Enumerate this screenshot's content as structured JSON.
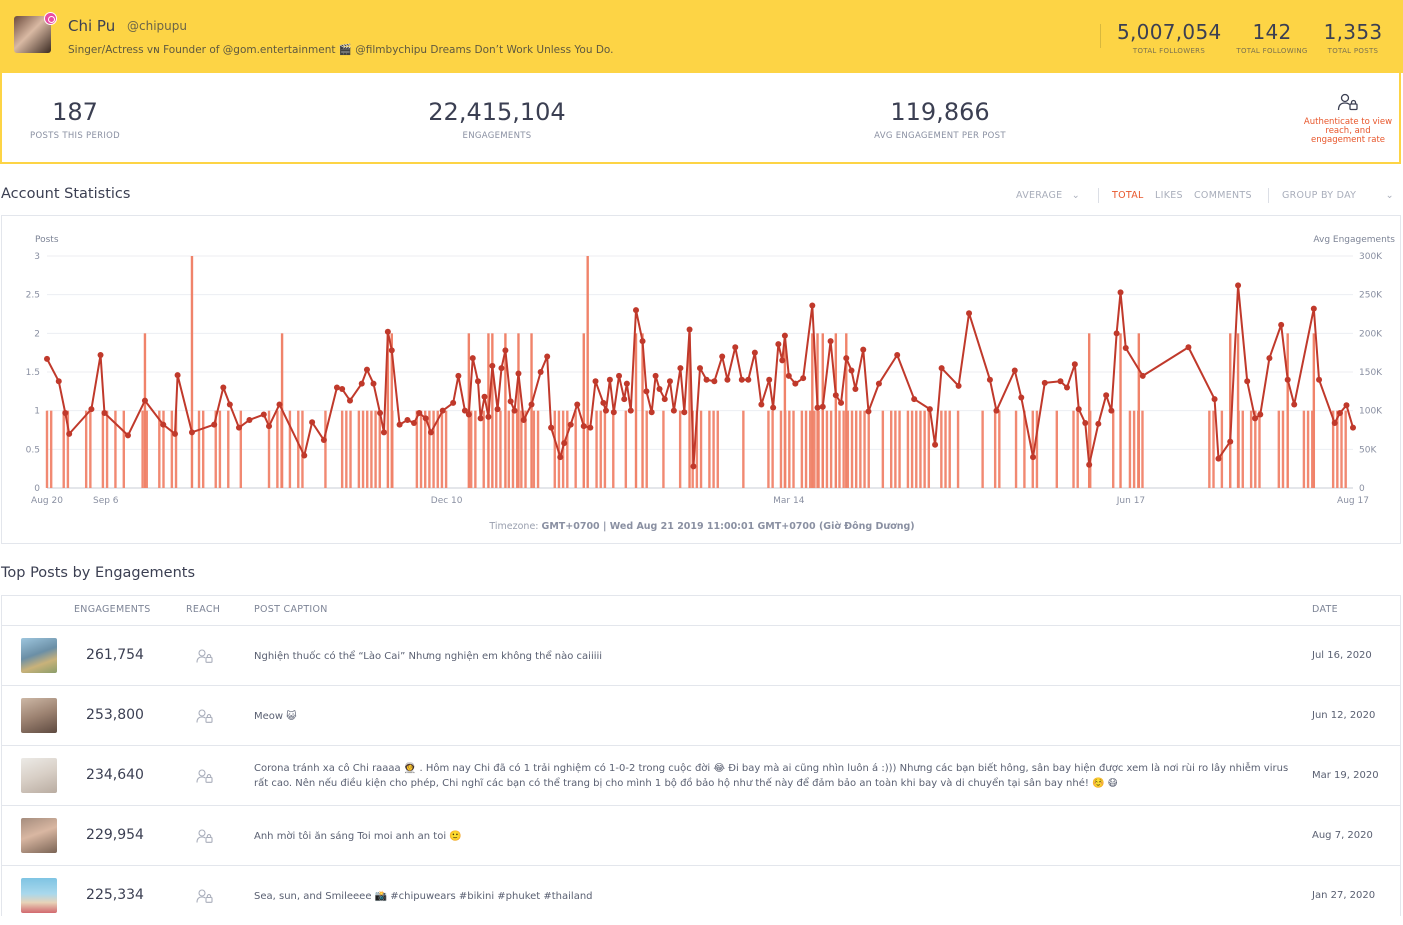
{
  "profile": {
    "name": "Chi Pu",
    "handle": "@chipupu",
    "bio": "Singer/Actress ᴠɴ Founder of @gom.entertainment 🎬 @filmbychipu Dreams Don’t Work Unless You Do.",
    "stats": [
      {
        "value": "5,007,054",
        "label": "TOTAL FOLLOWERS"
      },
      {
        "value": "142",
        "label": "TOTAL FOLLOWING"
      },
      {
        "value": "1,353",
        "label": "TOTAL POSTS"
      }
    ]
  },
  "summary": {
    "posts": {
      "value": "187",
      "label": "POSTS THIS PERIOD"
    },
    "engagements": {
      "value": "22,415,104",
      "label": "ENGAGEMENTS"
    },
    "avg": {
      "value": "119,866",
      "label": "AVG ENGAGEMENT PER POST"
    },
    "auth_text": "Authenticate to view reach, and engagement rate"
  },
  "stats_section": {
    "title": "Account Statistics",
    "average": "AVERAGE",
    "total": "TOTAL",
    "likes": "LIKES",
    "comments": "COMMENTS",
    "group": "GROUP BY DAY",
    "timezone_label": "Timezone:",
    "timezone_value": "GMT+0700 | Wed Aug 21 2019 11:00:01 GMT+0700 (Giờ Đông Dương)"
  },
  "chart_data": {
    "type": "bar+line",
    "left_axis_label": "Posts",
    "right_axis_label": "Avg Engagements",
    "left_ticks": [
      "0",
      "0.5",
      "1",
      "1.5",
      "2",
      "2.5",
      "3"
    ],
    "right_ticks": [
      "0",
      "50K",
      "100K",
      "150K",
      "200K",
      "250K",
      "300K"
    ],
    "ylim_left": [
      0,
      3
    ],
    "ylim_right": [
      0,
      300000
    ],
    "x_ticks": [
      {
        "label": "Aug 20",
        "t": 0
      },
      {
        "label": "Sep 6",
        "t": 0.045
      },
      {
        "label": "Dec 10",
        "t": 0.306
      },
      {
        "label": "Mar 14",
        "t": 0.568
      },
      {
        "label": "Jun 17",
        "t": 0.83
      },
      {
        "label": "Aug 17",
        "t": 1.0
      }
    ],
    "series_line": [
      [
        0.0,
        167000
      ],
      [
        0.009,
        138000
      ],
      [
        0.014,
        97000
      ],
      [
        0.017,
        70000
      ],
      [
        0.034,
        102000
      ],
      [
        0.041,
        172000
      ],
      [
        0.044,
        97000
      ],
      [
        0.062,
        68000
      ],
      [
        0.075,
        113000
      ],
      [
        0.089,
        82000
      ],
      [
        0.098,
        70000
      ],
      [
        0.1,
        146000
      ],
      [
        0.111,
        72000
      ],
      [
        0.128,
        82000
      ],
      [
        0.135,
        130000
      ],
      [
        0.14,
        108000
      ],
      [
        0.147,
        78000
      ],
      [
        0.155,
        88000
      ],
      [
        0.166,
        95000
      ],
      [
        0.17,
        80000
      ],
      [
        0.178,
        108000
      ],
      [
        0.197,
        42000
      ],
      [
        0.203,
        85000
      ],
      [
        0.212,
        62000
      ],
      [
        0.222,
        130000
      ],
      [
        0.226,
        128000
      ],
      [
        0.232,
        113000
      ],
      [
        0.241,
        135000
      ],
      [
        0.245,
        153000
      ],
      [
        0.25,
        135000
      ],
      [
        0.255,
        97000
      ],
      [
        0.258,
        72000
      ],
      [
        0.261,
        202000
      ],
      [
        0.264,
        178000
      ],
      [
        0.27,
        82000
      ],
      [
        0.276,
        88000
      ],
      [
        0.281,
        84000
      ],
      [
        0.285,
        97000
      ],
      [
        0.29,
        90000
      ],
      [
        0.294,
        72000
      ],
      [
        0.303,
        100000
      ],
      [
        0.311,
        110000
      ],
      [
        0.315,
        145000
      ],
      [
        0.32,
        100000
      ],
      [
        0.323,
        95000
      ],
      [
        0.326,
        168000
      ],
      [
        0.33,
        138000
      ],
      [
        0.332,
        90000
      ],
      [
        0.335,
        118000
      ],
      [
        0.338,
        92000
      ],
      [
        0.341,
        158000
      ],
      [
        0.345,
        102000
      ],
      [
        0.348,
        155000
      ],
      [
        0.351,
        178000
      ],
      [
        0.355,
        112000
      ],
      [
        0.358,
        100000
      ],
      [
        0.361,
        148000
      ],
      [
        0.365,
        88000
      ],
      [
        0.371,
        108000
      ],
      [
        0.378,
        150000
      ],
      [
        0.383,
        170000
      ],
      [
        0.386,
        78000
      ],
      [
        0.393,
        40000
      ],
      [
        0.396,
        58000
      ],
      [
        0.401,
        82000
      ],
      [
        0.406,
        108000
      ],
      [
        0.411,
        80000
      ],
      [
        0.416,
        78000
      ],
      [
        0.42,
        138000
      ],
      [
        0.426,
        110000
      ],
      [
        0.428,
        100000
      ],
      [
        0.431,
        140000
      ],
      [
        0.434,
        98000
      ],
      [
        0.438,
        145000
      ],
      [
        0.442,
        115000
      ],
      [
        0.444,
        135000
      ],
      [
        0.447,
        100000
      ],
      [
        0.451,
        230000
      ],
      [
        0.456,
        190000
      ],
      [
        0.459,
        125000
      ],
      [
        0.463,
        98000
      ],
      [
        0.466,
        145000
      ],
      [
        0.469,
        128000
      ],
      [
        0.473,
        115000
      ],
      [
        0.477,
        138000
      ],
      [
        0.48,
        100000
      ],
      [
        0.485,
        155000
      ],
      [
        0.488,
        98000
      ],
      [
        0.492,
        205000
      ],
      [
        0.495,
        28000
      ],
      [
        0.5,
        155000
      ],
      [
        0.505,
        140000
      ],
      [
        0.511,
        138000
      ],
      [
        0.517,
        170000
      ],
      [
        0.521,
        140000
      ],
      [
        0.527,
        182000
      ],
      [
        0.532,
        140000
      ],
      [
        0.537,
        140000
      ],
      [
        0.542,
        175000
      ],
      [
        0.547,
        108000
      ],
      [
        0.553,
        140000
      ],
      [
        0.556,
        104000
      ],
      [
        0.56,
        186000
      ],
      [
        0.563,
        165000
      ],
      [
        0.565,
        197000
      ],
      [
        0.568,
        145000
      ],
      [
        0.573,
        135000
      ],
      [
        0.579,
        142000
      ],
      [
        0.586,
        236000
      ],
      [
        0.59,
        104000
      ],
      [
        0.594,
        105000
      ],
      [
        0.6,
        190000
      ],
      [
        0.604,
        120000
      ],
      [
        0.608,
        110000
      ],
      [
        0.612,
        168000
      ],
      [
        0.616,
        152000
      ],
      [
        0.619,
        128000
      ],
      [
        0.625,
        179000
      ],
      [
        0.629,
        99000
      ],
      [
        0.637,
        135000
      ],
      [
        0.651,
        172000
      ],
      [
        0.664,
        115000
      ],
      [
        0.676,
        102000
      ],
      [
        0.68,
        56000
      ],
      [
        0.685,
        155000
      ],
      [
        0.698,
        132000
      ],
      [
        0.706,
        226000
      ],
      [
        0.722,
        140000
      ],
      [
        0.727,
        100000
      ],
      [
        0.741,
        152000
      ],
      [
        0.746,
        117000
      ],
      [
        0.755,
        40000
      ],
      [
        0.764,
        136000
      ],
      [
        0.776,
        138000
      ],
      [
        0.781,
        130000
      ],
      [
        0.787,
        160000
      ],
      [
        0.79,
        102000
      ],
      [
        0.795,
        84000
      ],
      [
        0.798,
        30000
      ],
      [
        0.805,
        83000
      ],
      [
        0.811,
        120000
      ],
      [
        0.815,
        100000
      ],
      [
        0.819,
        200000
      ],
      [
        0.822,
        253000
      ],
      [
        0.826,
        181000
      ],
      [
        0.839,
        145000
      ],
      [
        0.874,
        182000
      ],
      [
        0.894,
        115000
      ],
      [
        0.897,
        38000
      ],
      [
        0.906,
        60000
      ],
      [
        0.912,
        262000
      ],
      [
        0.919,
        138000
      ],
      [
        0.925,
        90000
      ],
      [
        0.929,
        95000
      ],
      [
        0.936,
        168000
      ],
      [
        0.945,
        211000
      ],
      [
        0.95,
        140000
      ],
      [
        0.955,
        108000
      ],
      [
        0.97,
        232000
      ],
      [
        0.974,
        140000
      ],
      [
        0.986,
        84000
      ],
      [
        0.99,
        97000
      ],
      [
        0.995,
        107000
      ],
      [
        1.0,
        78000
      ]
    ],
    "bars_special": [
      {
        "t": 0.075,
        "posts": 2
      },
      {
        "t": 0.111,
        "posts": 3
      },
      {
        "t": 0.18,
        "posts": 2
      },
      {
        "t": 0.261,
        "posts": 2
      },
      {
        "t": 0.264,
        "posts": 2
      },
      {
        "t": 0.323,
        "posts": 2
      },
      {
        "t": 0.338,
        "posts": 2
      },
      {
        "t": 0.341,
        "posts": 2
      },
      {
        "t": 0.351,
        "posts": 2
      },
      {
        "t": 0.361,
        "posts": 2
      },
      {
        "t": 0.371,
        "posts": 2
      },
      {
        "t": 0.411,
        "posts": 2
      },
      {
        "t": 0.414,
        "posts": 3
      },
      {
        "t": 0.451,
        "posts": 2
      },
      {
        "t": 0.456,
        "posts": 2
      },
      {
        "t": 0.492,
        "posts": 2
      },
      {
        "t": 0.565,
        "posts": 2
      },
      {
        "t": 0.586,
        "posts": 2
      },
      {
        "t": 0.59,
        "posts": 2
      },
      {
        "t": 0.594,
        "posts": 2
      },
      {
        "t": 0.604,
        "posts": 2
      },
      {
        "t": 0.612,
        "posts": 2
      },
      {
        "t": 0.798,
        "posts": 2
      },
      {
        "t": 0.822,
        "posts": 2
      },
      {
        "t": 0.836,
        "posts": 2
      },
      {
        "t": 0.906,
        "posts": 2
      },
      {
        "t": 0.912,
        "posts": 2
      },
      {
        "t": 0.95,
        "posts": 2
      },
      {
        "t": 0.97,
        "posts": 2
      }
    ],
    "bar_ranges_one": [
      [
        0.0,
        0.02
      ],
      [
        0.03,
        0.06
      ],
      [
        0.07,
        0.1
      ],
      [
        0.11,
        0.16
      ],
      [
        0.17,
        0.2
      ],
      [
        0.21,
        0.27
      ],
      [
        0.28,
        0.52
      ],
      [
        0.53,
        0.63
      ],
      [
        0.64,
        0.7
      ],
      [
        0.71,
        0.76
      ],
      [
        0.77,
        0.8
      ],
      [
        0.81,
        0.86
      ],
      [
        0.89,
        0.93
      ],
      [
        0.94,
        1.0
      ]
    ]
  },
  "top_posts": {
    "title": "Top Posts by Engagements",
    "headers": {
      "engagements": "ENGAGEMENTS",
      "reach": "REACH",
      "caption": "POST CAPTION",
      "date": "DATE"
    },
    "rows": [
      {
        "engagements": "261,754",
        "caption": "Nghiện thuốc có thể “Lào Cai” Nhưng nghiện em không thể nào caiiiii",
        "date": "Jul 16, 2020",
        "thumb": "linear-gradient(160deg,#9ec6de 0%,#6b8fa6 45%,#c9b27a 70%,#8a9d6a 100%)"
      },
      {
        "engagements": "253,800",
        "caption": "Meow 😺",
        "date": "Jun 12, 2020",
        "thumb": "linear-gradient(160deg,#cdb8a6 0%,#9c8271 50%,#5e4a40 100%)"
      },
      {
        "engagements": "234,640",
        "caption": "Corona tránh xa cô Chi raaaa 👩‍🚀 . Hôm nay Chi đã có 1 trải nghiệm có 1-0-2 trong cuộc đời 😂 Đi bay mà ai cũng nhìn luôn á :))) Nhưng các bạn biết hông, sân bay hiện được xem là nơi rùi ro lây nhiễm virus rất cao. Nên nếu điều kiện cho phép, Chi nghĩ các bạn có thể trang bị cho mình 1 bộ đồ bảo hộ như thế này để đảm bảo an toàn khi bay và di chuyển tại sân bay nhé! ☺️ 😷",
        "date": "Mar 19, 2020",
        "thumb": "linear-gradient(160deg,#eceae6 0%,#d8cfc6 50%,#b9aca1 100%)"
      },
      {
        "engagements": "229,954",
        "caption": "Anh mời tôi ăn sáng Toi moi anh an toi 🙂",
        "date": "Aug 7, 2020",
        "thumb": "linear-gradient(160deg,#a58d7e 0%,#d9b7a2 45%,#7a6455 100%)"
      },
      {
        "engagements": "225,334",
        "caption": "Sea, sun, and Smileeee 📸 #chipuwears #bikini #phuket #thailand",
        "date": "Jan 27, 2020",
        "thumb": "linear-gradient(180deg,#7fc4e3 0%,#a9d8ec 45%,#e7d3b8 70%,#d2696e 100%)"
      }
    ]
  }
}
